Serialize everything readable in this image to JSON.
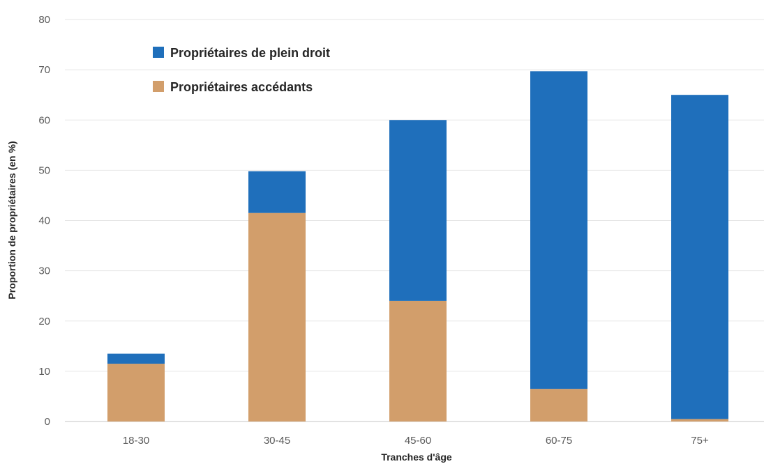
{
  "chart_data": {
    "type": "bar",
    "stacked": true,
    "categories": [
      "18-30",
      "30-45",
      "45-60",
      "60-75",
      "75+"
    ],
    "series": [
      {
        "name": "Propriétaires accédants",
        "color": "#d29e6b",
        "values": [
          11.5,
          41.5,
          24,
          6.5,
          0.5
        ]
      },
      {
        "name": "Propriétaires de plein droit",
        "color": "#1f6fbb",
        "values": [
          2,
          8.3,
          36,
          63.2,
          64.5
        ]
      }
    ],
    "legend_order": [
      "Propriétaires de plein droit",
      "Propriétaires accédants"
    ],
    "legend_position": "top-left",
    "title": "",
    "xlabel": "Tranches d'âge",
    "ylabel": "Proportion de propriétaires (en %)",
    "ylim": [
      0,
      80
    ],
    "yticks": [
      0,
      10,
      20,
      30,
      40,
      50,
      60,
      70,
      80
    ],
    "grid": true
  }
}
